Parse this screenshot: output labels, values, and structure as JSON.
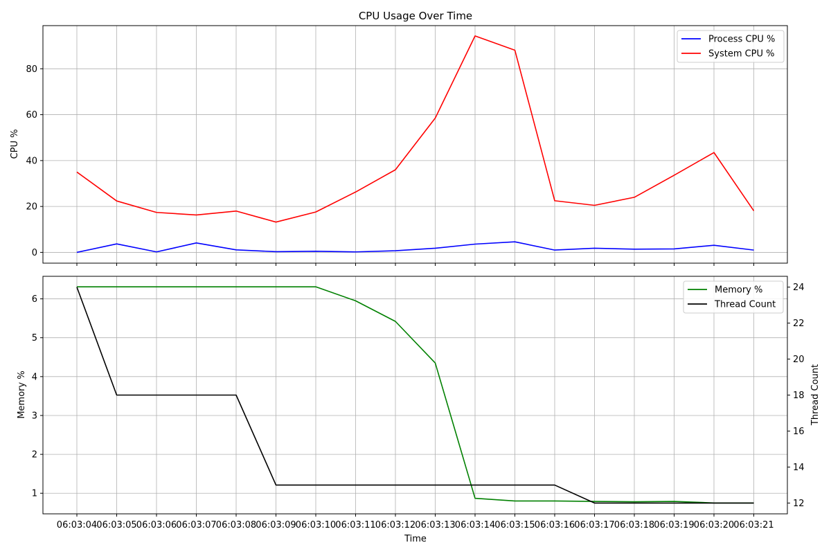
{
  "chart_data": [
    {
      "type": "line",
      "title": "CPU Usage Over Time",
      "xlabel": "",
      "ylabel": "CPU %",
      "x": [
        "06:03:04",
        "06:03:05",
        "06:03:06",
        "06:03:07",
        "06:03:08",
        "06:03:09",
        "06:03:10",
        "06:03:11",
        "06:03:12",
        "06:03:13",
        "06:03:14",
        "06:03:15",
        "06:03:16",
        "06:03:17",
        "06:03:18",
        "06:03:19",
        "06:03:20",
        "06:03:21"
      ],
      "ylim": [
        -4.7,
        98.8
      ],
      "yticks": [
        0,
        20,
        40,
        60,
        80
      ],
      "grid": true,
      "legend_position": "top-right",
      "series": [
        {
          "name": "Process CPU %",
          "color": "#0000ff",
          "values": [
            0.0,
            3.7,
            0.2,
            4.1,
            1.1,
            0.3,
            0.5,
            0.2,
            0.7,
            1.8,
            3.6,
            4.6,
            1.0,
            1.8,
            1.4,
            1.5,
            3.1,
            1.0
          ]
        },
        {
          "name": "System CPU %",
          "color": "#ff0000",
          "values": [
            35.0,
            22.4,
            17.4,
            16.3,
            18.0,
            13.2,
            17.6,
            26.3,
            36.0,
            58.5,
            94.3,
            88.1,
            22.5,
            20.5,
            24.0,
            33.6,
            43.5,
            18.1
          ]
        }
      ]
    },
    {
      "type": "line",
      "title": "",
      "xlabel": "Time",
      "ylabel": "Memory %",
      "y2label": "Thread Count",
      "x": [
        "06:03:04",
        "06:03:05",
        "06:03:06",
        "06:03:07",
        "06:03:08",
        "06:03:09",
        "06:03:10",
        "06:03:11",
        "06:03:12",
        "06:03:13",
        "06:03:14",
        "06:03:15",
        "06:03:16",
        "06:03:17",
        "06:03:18",
        "06:03:19",
        "06:03:20",
        "06:03:21"
      ],
      "ylim": [
        0.47,
        6.58
      ],
      "yticks": [
        1,
        2,
        3,
        4,
        5,
        6
      ],
      "y2lim": [
        11.4,
        24.6
      ],
      "y2ticks": [
        12,
        14,
        16,
        18,
        20,
        22,
        24
      ],
      "grid": true,
      "legend_position": "top-right",
      "series": [
        {
          "name": "Memory %",
          "color": "#008000",
          "axis": "left",
          "values": [
            6.31,
            6.31,
            6.31,
            6.31,
            6.31,
            6.31,
            6.31,
            5.95,
            5.42,
            4.35,
            0.87,
            0.8,
            0.8,
            0.79,
            0.78,
            0.79,
            0.75,
            0.75
          ]
        },
        {
          "name": "Thread Count",
          "color": "#000000",
          "axis": "right",
          "values": [
            24,
            18,
            18,
            18,
            18,
            13,
            13,
            13,
            13,
            13,
            13,
            13,
            13,
            12,
            12,
            12,
            12,
            12
          ]
        }
      ]
    }
  ]
}
